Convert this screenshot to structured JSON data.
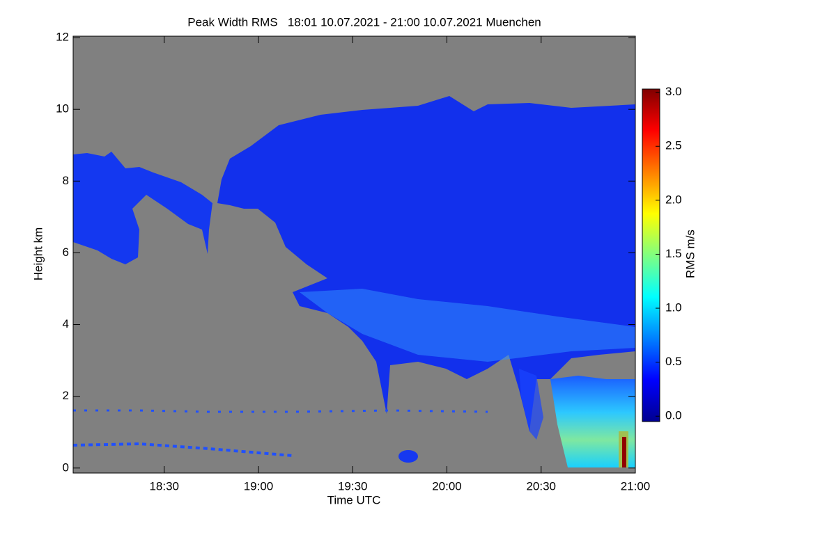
{
  "chart_data": {
    "type": "heatmap",
    "title": "Peak Width RMS   18:01 10.07.2021 - 21:00 10.07.2021 Muenchen",
    "x_label": "Time UTC",
    "y_label": "Height km",
    "colorbar_label": "RMS m/s",
    "xlim": [
      1081,
      1260
    ],
    "xticks": [
      {
        "value": 1110,
        "label": "18:30"
      },
      {
        "value": 1140,
        "label": "19:00"
      },
      {
        "value": 1170,
        "label": "19:30"
      },
      {
        "value": 1200,
        "label": "20:00"
      },
      {
        "value": 1230,
        "label": "20:30"
      },
      {
        "value": 1260,
        "label": "21:00"
      }
    ],
    "ylim": [
      -0.14,
      12.04
    ],
    "yticks": [
      0,
      2,
      4,
      6,
      8,
      10,
      12
    ],
    "clim": [
      -0.05,
      3.03
    ],
    "cticks": [
      {
        "value": 0,
        "label": "0.0"
      },
      {
        "value": 0.5,
        "label": "0.5"
      },
      {
        "value": 1,
        "label": "1.0"
      },
      {
        "value": 1.5,
        "label": "1.5"
      },
      {
        "value": 2,
        "label": "2.0"
      },
      {
        "value": 2.5,
        "label": "2.5"
      },
      {
        "value": 3,
        "label": "3.0"
      }
    ],
    "colormap": [
      "#00008f",
      "#0000ff",
      "#0080ff",
      "#00ffff",
      "#80ff80",
      "#ffff00",
      "#ff8000",
      "#ff0000",
      "#800000"
    ],
    "background": "#808080"
  }
}
